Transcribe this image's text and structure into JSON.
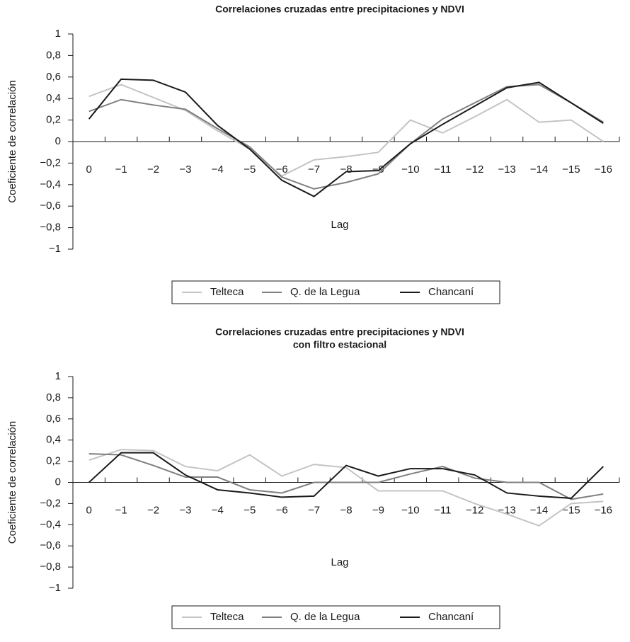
{
  "chart_data": [
    {
      "type": "line",
      "title": "Correlaciones cruzadas entre precipitaciones y NDVI",
      "x_label": "Lag",
      "y_label": "Coeficiente de correlación",
      "categories": [
        "0",
        "−1",
        "−2",
        "−3",
        "−4",
        "−5",
        "−6",
        "−7",
        "−8",
        "−9",
        "−10",
        "−11",
        "−12",
        "−13",
        "−14",
        "−15",
        "−16"
      ],
      "ylim": [
        -1,
        1
      ],
      "yticks": [
        {
          "value": 1,
          "label": "1"
        },
        {
          "value": 0.8,
          "label": "0,8"
        },
        {
          "value": 0.6,
          "label": "0,6"
        },
        {
          "value": 0.4,
          "label": "0,4"
        },
        {
          "value": 0.2,
          "label": "0,2"
        },
        {
          "value": 0,
          "label": "0"
        },
        {
          "value": -0.2,
          "label": "−0,2"
        },
        {
          "value": -0.4,
          "label": "−0,4"
        },
        {
          "value": -0.6,
          "label": "−0,6"
        },
        {
          "value": -0.8,
          "label": "−0,8"
        },
        {
          "value": -1,
          "label": "−1"
        }
      ],
      "series": [
        {
          "name": "Telteca",
          "color": "#c4c4c4",
          "values": [
            0.42,
            0.53,
            0.41,
            0.29,
            0.1,
            -0.07,
            -0.32,
            -0.17,
            -0.14,
            -0.1,
            0.2,
            0.08,
            0.23,
            0.39,
            0.18,
            0.2,
            0
          ]
        },
        {
          "name": "Q. de la Legua",
          "color": "#7f7f7f",
          "values": [
            0.28,
            0.39,
            0.34,
            0.3,
            0.12,
            -0.05,
            -0.33,
            -0.44,
            -0.38,
            -0.3,
            -0.02,
            0.21,
            0.36,
            0.51,
            0.53,
            0.36,
            0.18
          ]
        },
        {
          "name": "Chancaní",
          "color": "#1a1a1a",
          "values": [
            0.21,
            0.58,
            0.57,
            0.46,
            0.15,
            -0.07,
            -0.36,
            -0.51,
            -0.28,
            -0.27,
            -0.02,
            0.16,
            0.33,
            0.5,
            0.55,
            0.36,
            0.17
          ]
        }
      ]
    },
    {
      "type": "line",
      "title": "Correlaciones cruzadas entre precipitaciones y NDVI",
      "subtitle": "con filtro estacional",
      "x_label": "Lag",
      "y_label": "Coeficiente de correlación",
      "categories": [
        "0",
        "−1",
        "−2",
        "−3",
        "−4",
        "−5",
        "−6",
        "−7",
        "−8",
        "−9",
        "−10",
        "−11",
        "−12",
        "−13",
        "−14",
        "−15",
        "−16"
      ],
      "ylim": [
        -1,
        1
      ],
      "yticks": [
        {
          "value": 1,
          "label": "1"
        },
        {
          "value": 0.8,
          "label": "0,8"
        },
        {
          "value": 0.6,
          "label": "0,6"
        },
        {
          "value": 0.4,
          "label": "0,4"
        },
        {
          "value": 0.2,
          "label": "0,2"
        },
        {
          "value": 0,
          "label": "0"
        },
        {
          "value": -0.2,
          "label": "−0,2"
        },
        {
          "value": -0.4,
          "label": "−0,4"
        },
        {
          "value": -0.6,
          "label": "−0,6"
        },
        {
          "value": -0.8,
          "label": "−0,8"
        },
        {
          "value": -1,
          "label": "−1"
        }
      ],
      "series": [
        {
          "name": "Telteca",
          "color": "#c4c4c4",
          "values": [
            0.21,
            0.31,
            0.3,
            0.15,
            0.11,
            0.26,
            0.06,
            0.17,
            0.14,
            -0.08,
            -0.08,
            -0.08,
            -0.2,
            -0.3,
            -0.41,
            -0.2,
            -0.18
          ]
        },
        {
          "name": "Q. de la Legua",
          "color": "#7f7f7f",
          "values": [
            0.27,
            0.26,
            0.16,
            0.05,
            0.05,
            -0.07,
            -0.1,
            0,
            0,
            0,
            0.08,
            0.15,
            0.04,
            0,
            0,
            -0.16,
            -0.11
          ]
        },
        {
          "name": "Chancaní",
          "color": "#1a1a1a",
          "values": [
            0,
            0.28,
            0.28,
            0.07,
            -0.07,
            -0.1,
            -0.14,
            -0.13,
            0.16,
            0.06,
            0.13,
            0.13,
            0.07,
            -0.1,
            -0.13,
            -0.15,
            0.15
          ]
        }
      ]
    }
  ]
}
